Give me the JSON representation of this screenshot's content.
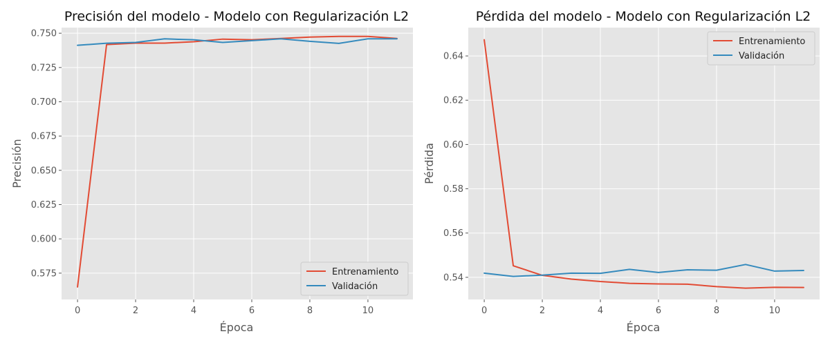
{
  "chart_data": [
    {
      "type": "line",
      "title": "Precisión del modelo - Modelo con Regularización L2",
      "xlabel": "Época",
      "ylabel": "Precisión",
      "xlim": [
        -0.55,
        11.55
      ],
      "ylim": [
        0.5558,
        0.7541
      ],
      "xticks": [
        0,
        2,
        4,
        6,
        8,
        10
      ],
      "xtick_labels": [
        "0",
        "2",
        "4",
        "6",
        "8",
        "10"
      ],
      "yticks": [
        0.575,
        0.6,
        0.625,
        0.65,
        0.675,
        0.7,
        0.725,
        0.75
      ],
      "ytick_labels": [
        "0.575",
        "0.600",
        "0.625",
        "0.650",
        "0.675",
        "0.700",
        "0.725",
        "0.750"
      ],
      "grid": true,
      "legend_position": "lower right",
      "x": [
        0,
        1,
        2,
        3,
        4,
        5,
        6,
        7,
        8,
        9,
        10,
        11
      ],
      "series": [
        {
          "name": "Entrenamiento",
          "color": "#e24a33",
          "values": [
            0.5649,
            0.7417,
            0.7428,
            0.7428,
            0.7438,
            0.7457,
            0.7452,
            0.7462,
            0.7472,
            0.7477,
            0.7477,
            0.7462
          ]
        },
        {
          "name": "Validación",
          "color": "#348abd",
          "values": [
            0.7412,
            0.7427,
            0.7433,
            0.7459,
            0.7452,
            0.7433,
            0.7446,
            0.7459,
            0.7441,
            0.7426,
            0.7459,
            0.7459
          ]
        }
      ]
    },
    {
      "type": "line",
      "title": "Pérdida del modelo - Modelo con Regularización L2",
      "xlabel": "Época",
      "ylabel": "Pérdida",
      "xlim": [
        -0.55,
        11.55
      ],
      "ylim": [
        0.53,
        0.6528
      ],
      "xticks": [
        0,
        2,
        4,
        6,
        8,
        10
      ],
      "xtick_labels": [
        "0",
        "2",
        "4",
        "6",
        "8",
        "10"
      ],
      "yticks": [
        0.54,
        0.56,
        0.58,
        0.6,
        0.62,
        0.64
      ],
      "ytick_labels": [
        "0.54",
        "0.56",
        "0.58",
        "0.60",
        "0.62",
        "0.64"
      ],
      "grid": true,
      "legend_position": "upper right",
      "x": [
        0,
        1,
        2,
        3,
        4,
        5,
        6,
        7,
        8,
        9,
        10,
        11
      ],
      "series": [
        {
          "name": "Entrenamiento",
          "color": "#e24a33",
          "values": [
            0.6473,
            0.5452,
            0.5409,
            0.5392,
            0.5381,
            0.5373,
            0.537,
            0.5369,
            0.5358,
            0.5351,
            0.5355,
            0.5354
          ]
        },
        {
          "name": "Validación",
          "color": "#348abd",
          "values": [
            0.5419,
            0.5404,
            0.541,
            0.5419,
            0.5418,
            0.5436,
            0.5422,
            0.5434,
            0.5432,
            0.5458,
            0.5428,
            0.5431
          ]
        }
      ]
    }
  ]
}
